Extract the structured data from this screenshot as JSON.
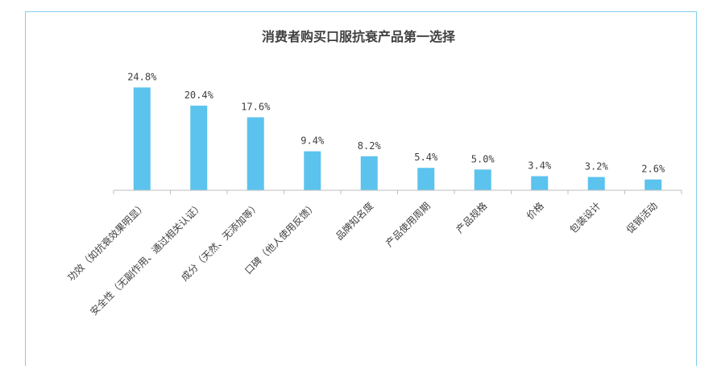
{
  "chart_data": {
    "type": "bar",
    "title": "消费者购买口服抗衰产品第一选择",
    "categories": [
      "功效（如抗衰效果明显）",
      "安全性（无副作用、通过相关认证）",
      "成分（天然、无添加等）",
      "口碑（他人使用反馈）",
      "品牌知名度",
      "产品使用周期",
      "产品规格",
      "价格",
      "包装设计",
      "促销活动"
    ],
    "values": [
      24.8,
      20.4,
      17.6,
      9.4,
      8.2,
      5.4,
      5.0,
      3.4,
      3.2,
      2.6
    ],
    "value_labels": [
      "24.8%",
      "20.4%",
      "17.6%",
      "9.4%",
      "8.2%",
      "5.4%",
      "5.0%",
      "3.4%",
      "3.2%",
      "2.6%"
    ],
    "unit": "%",
    "ylim": [
      0,
      28
    ],
    "grid": false,
    "legend": "none",
    "bar_color": "#5bc3ee"
  }
}
